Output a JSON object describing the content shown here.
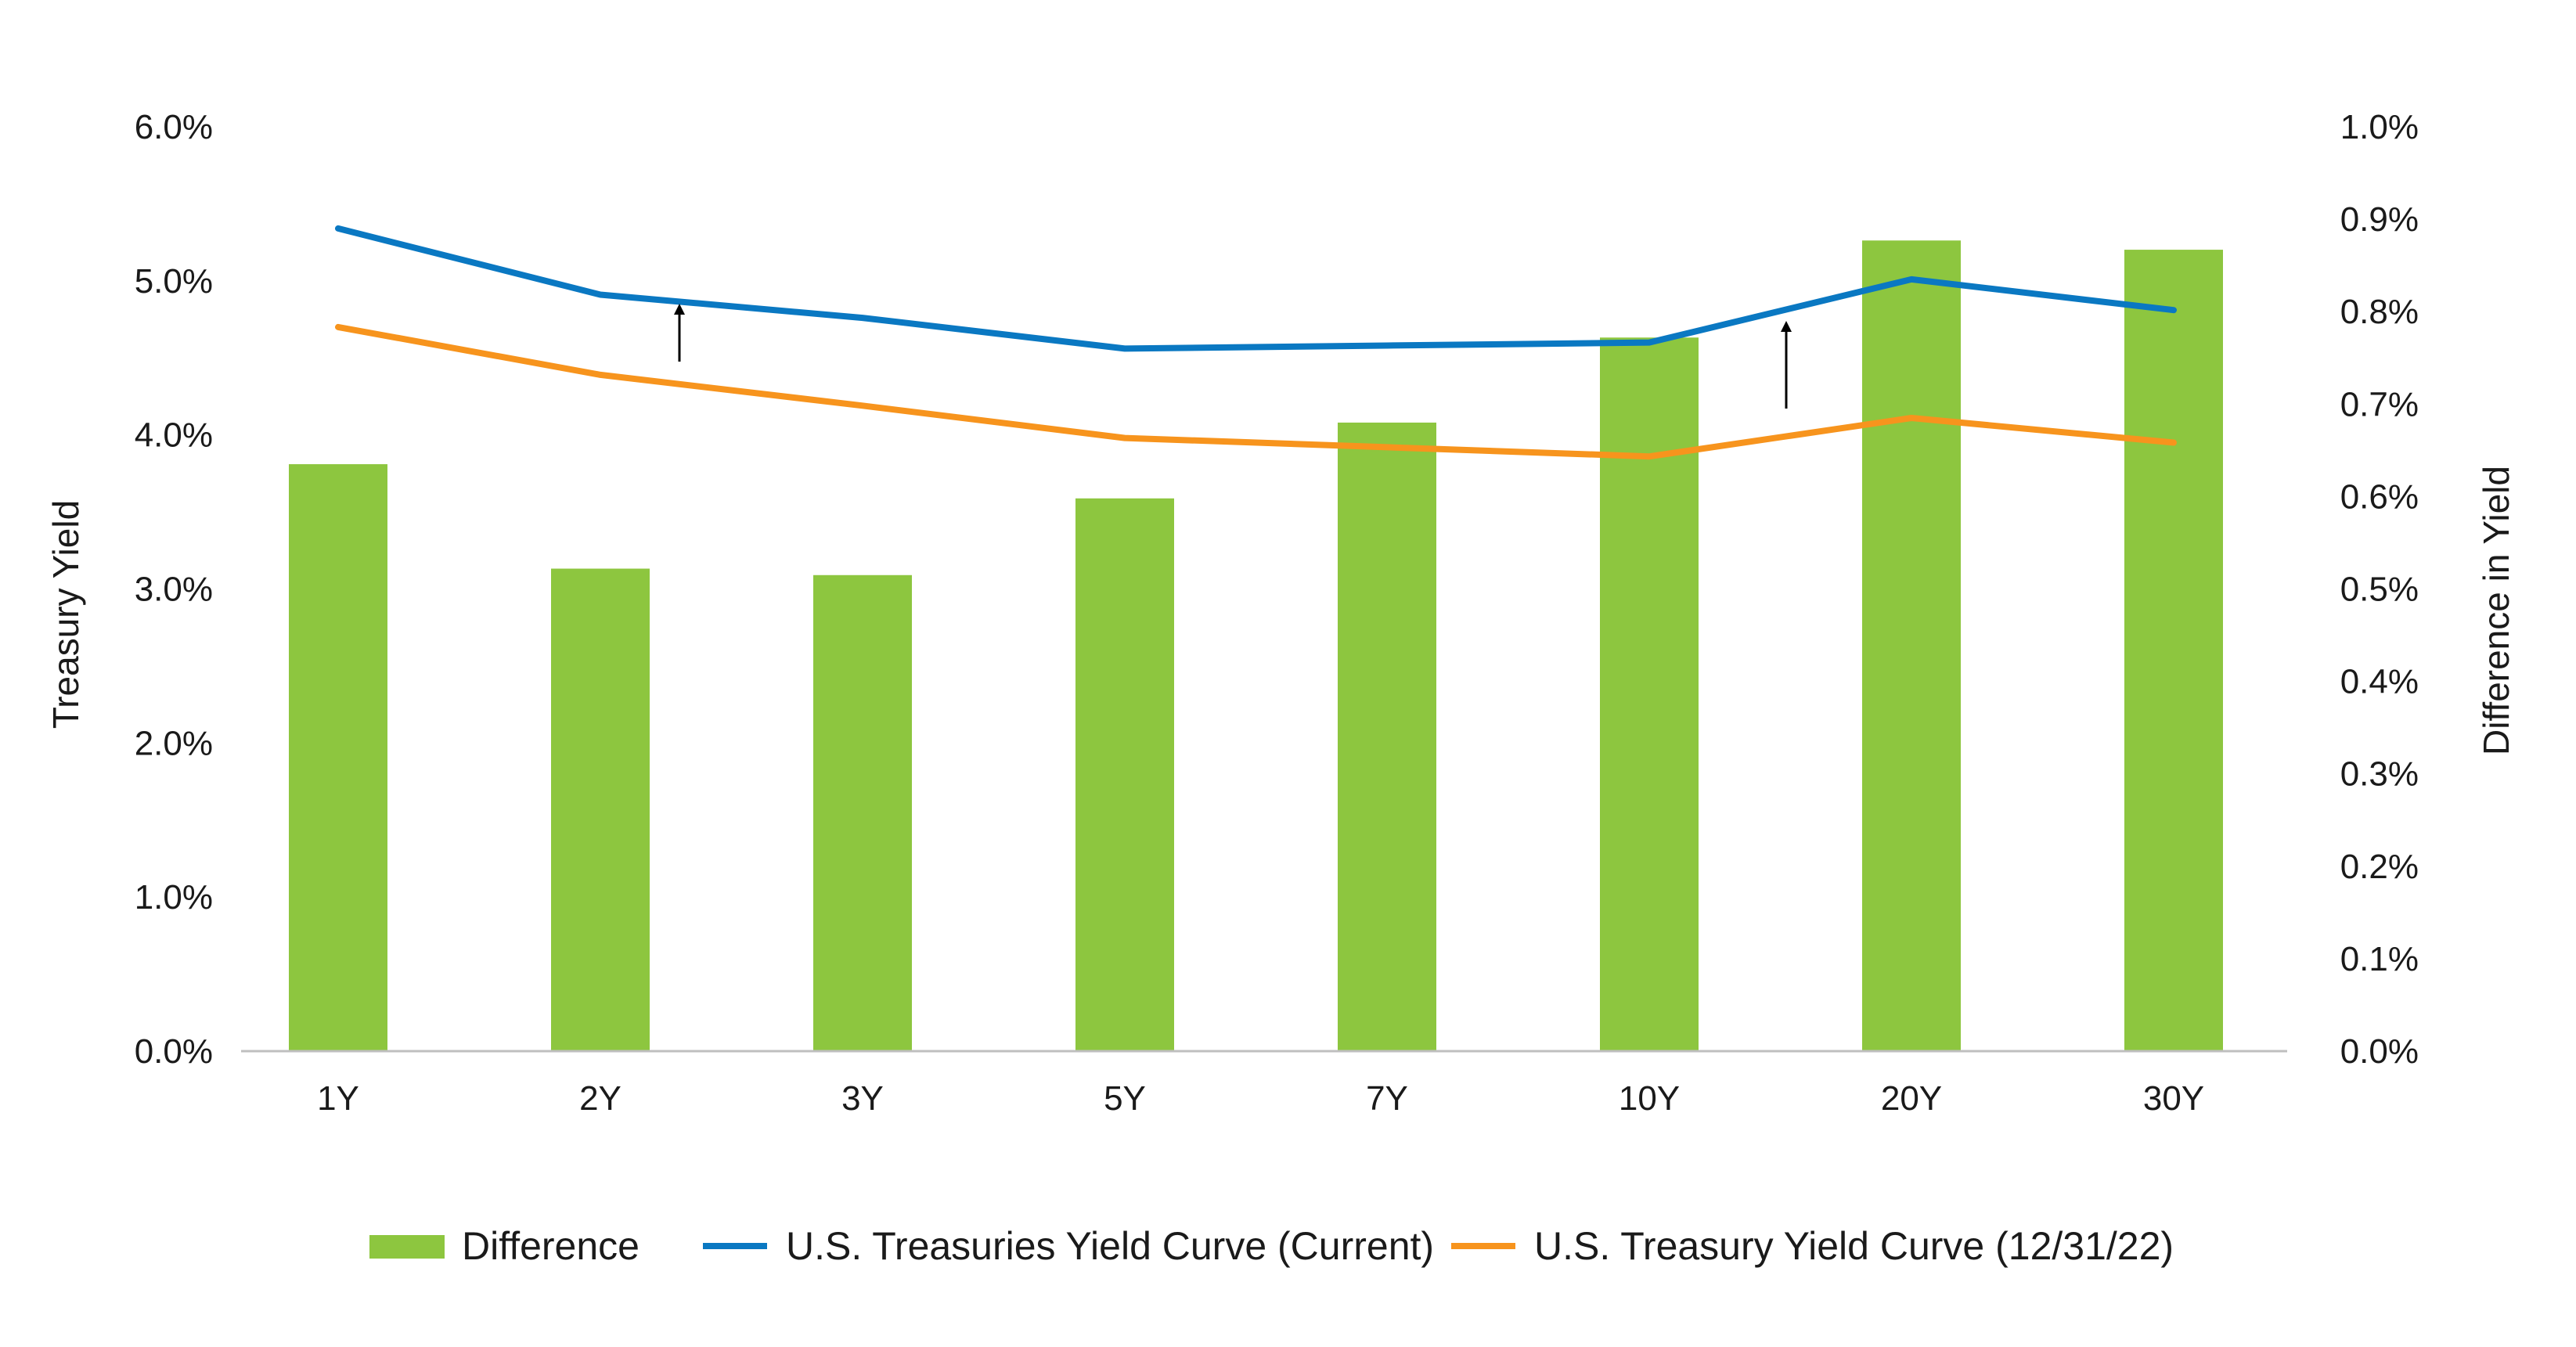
{
  "chart_data": {
    "type": "bar+line",
    "categories": [
      "1Y",
      "2Y",
      "3Y",
      "5Y",
      "7Y",
      "10Y",
      "20Y",
      "30Y"
    ],
    "left_axis": {
      "label": "Treasury Yield",
      "ylim": [
        0,
        6
      ],
      "ticks": [
        "0.0%",
        "1.0%",
        "2.0%",
        "3.0%",
        "4.0%",
        "5.0%",
        "6.0%"
      ]
    },
    "right_axis": {
      "label": "Difference in Yield",
      "ylim": [
        0,
        1
      ],
      "ticks": [
        "0.0%",
        "0.1%",
        "0.2%",
        "0.3%",
        "0.4%",
        "0.5%",
        "0.6%",
        "0.7%",
        "0.8%",
        "0.9%",
        "1.0%"
      ]
    },
    "series": [
      {
        "name": "Difference",
        "kind": "bar",
        "axis": "right",
        "color": "#8dc63f",
        "values": [
          0.635,
          0.522,
          0.515,
          0.598,
          0.68,
          0.772,
          0.877,
          0.867
        ]
      },
      {
        "name": "U.S. Treasuries Yield Curve (Current)",
        "kind": "line",
        "axis": "left",
        "color": "#0a78c2",
        "values": [
          5.34,
          4.91,
          4.76,
          4.56,
          4.58,
          4.6,
          5.01,
          4.81
        ]
      },
      {
        "name": "U.S. Treasury Yield Curve (12/31/22)",
        "kind": "line",
        "axis": "left",
        "color": "#f7941d",
        "values": [
          4.7,
          4.39,
          4.19,
          3.98,
          3.92,
          3.86,
          4.11,
          3.95
        ]
      }
    ],
    "legend_position": "bottom",
    "grid": false
  }
}
